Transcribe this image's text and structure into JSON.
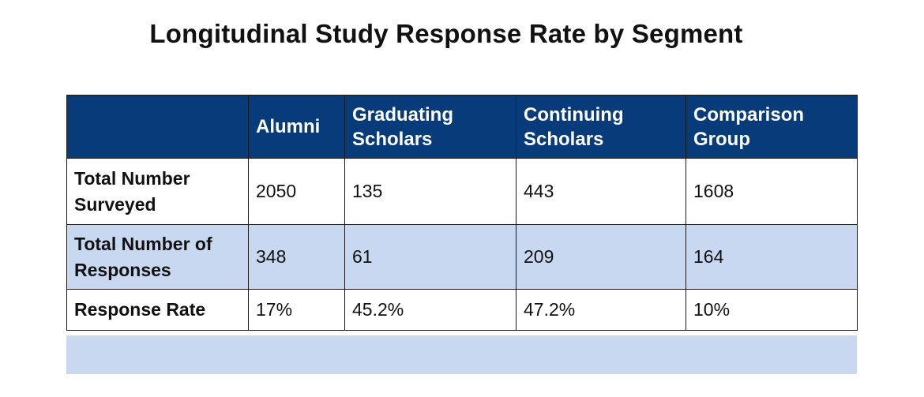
{
  "title": "Longitudinal Study Response Rate by Segment",
  "colors": {
    "header_bg": "#073b7a",
    "header_text": "#ffffff",
    "band_bg": "#c7d8f0"
  },
  "chart_data": {
    "type": "table",
    "title": "Longitudinal Study Response Rate by Segment",
    "columns": [
      "",
      "Alumni",
      "Graduating\nScholars",
      "Continuing\nScholars",
      "Comparison\nGroup"
    ],
    "rows": [
      {
        "label": "Total Number\nSurveyed",
        "values": [
          "2050",
          "135",
          "443",
          "1608"
        ]
      },
      {
        "label": "Total Number of\nResponses",
        "values": [
          "348",
          "61",
          "209",
          "164"
        ]
      },
      {
        "label": "Response Rate",
        "values": [
          "17%",
          "45.2%",
          "47.2%",
          "10%"
        ]
      }
    ]
  }
}
